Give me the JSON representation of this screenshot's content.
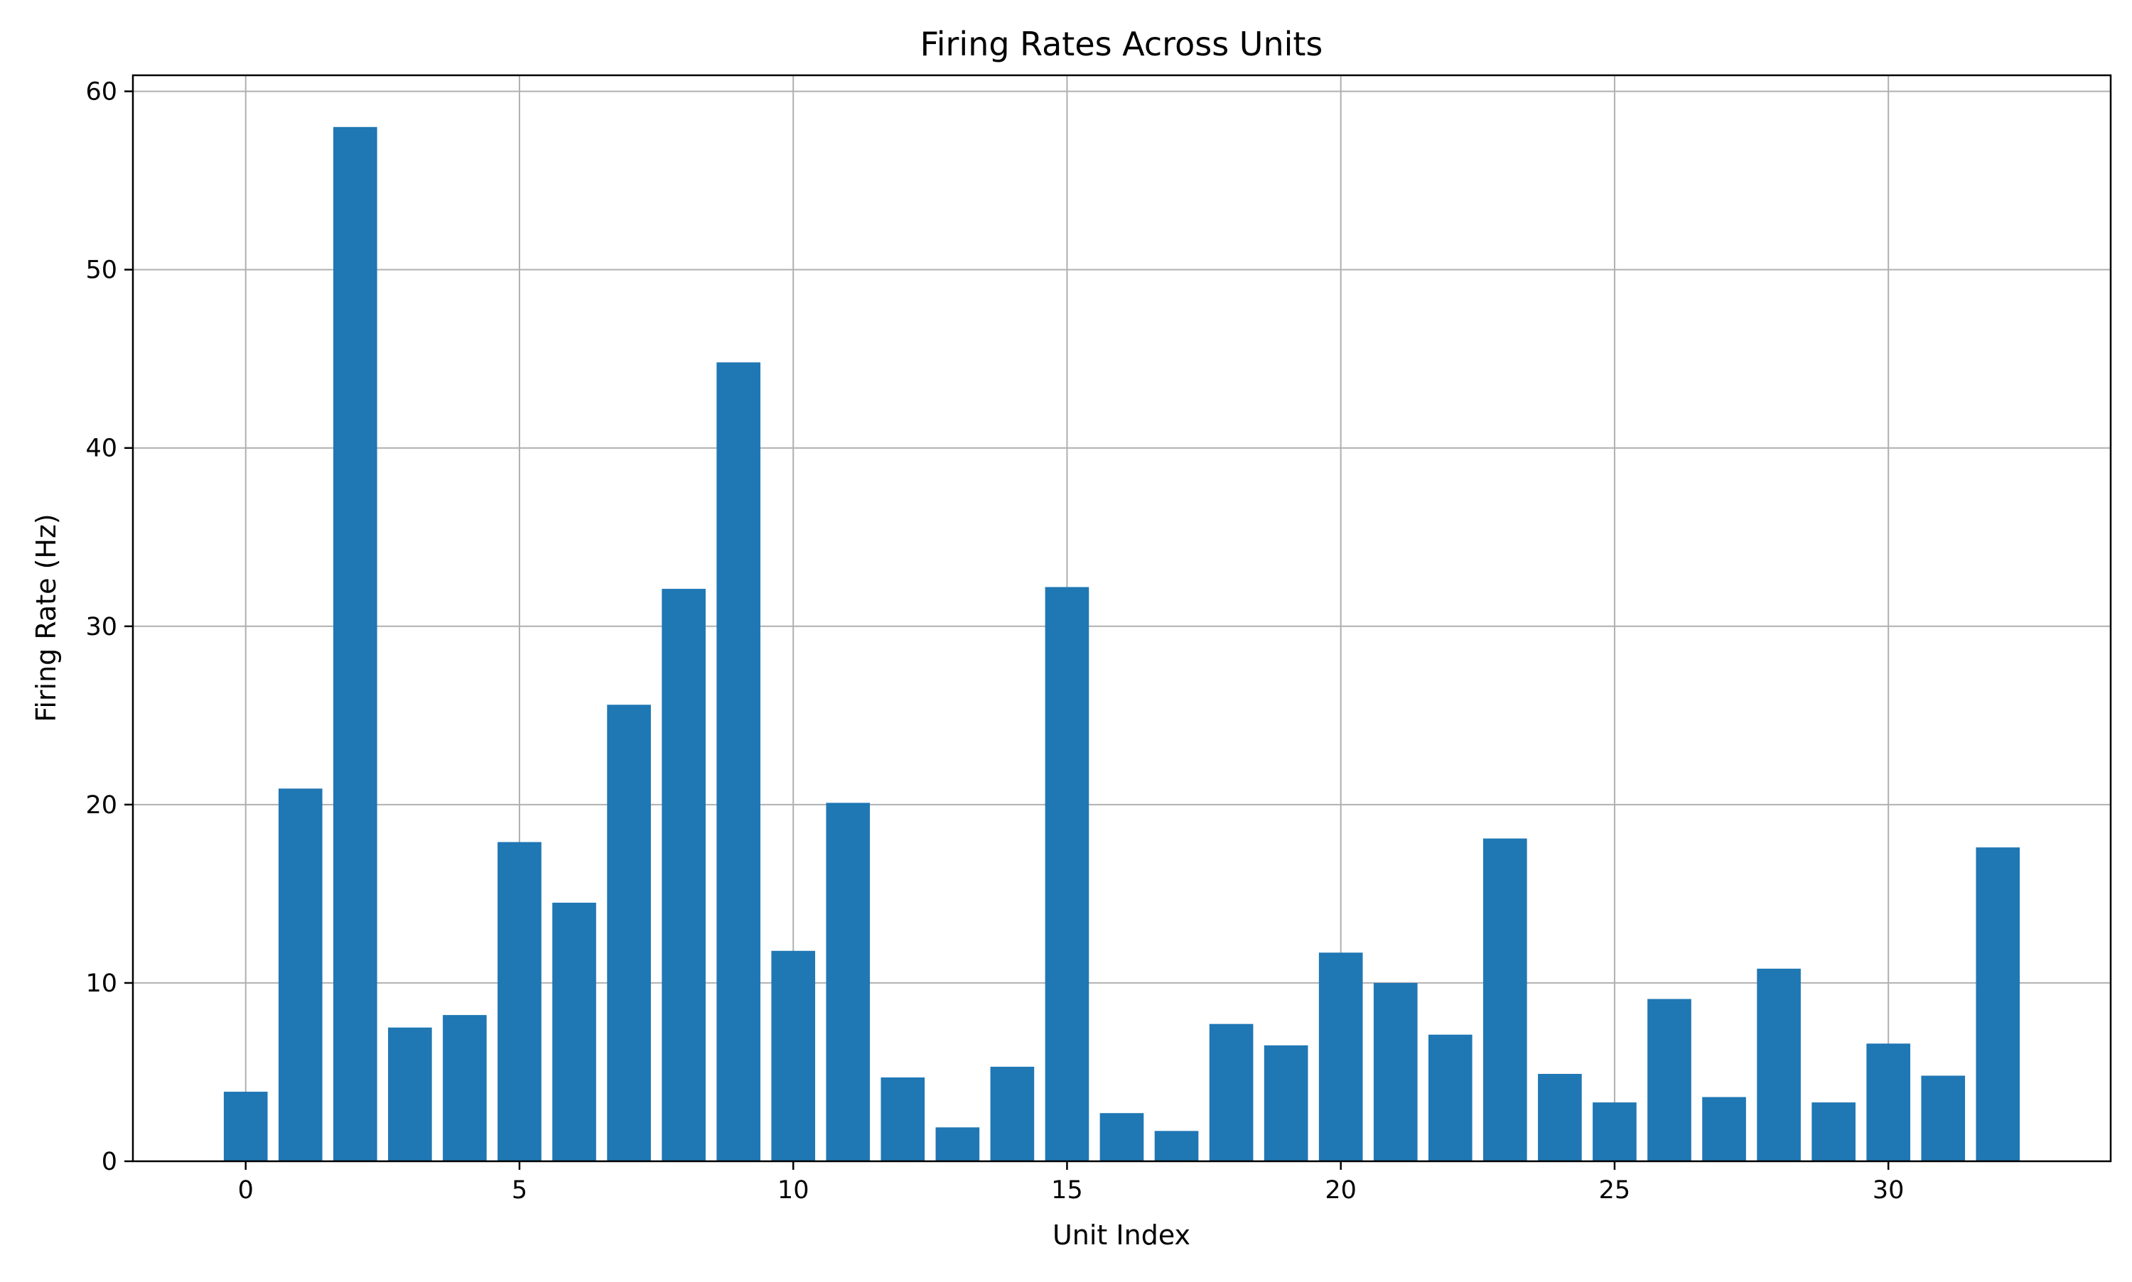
{
  "chart_data": {
    "type": "bar",
    "title": "Firing Rates Across Units",
    "xlabel": "Unit Index",
    "ylabel": "Firing Rate (Hz)",
    "x": [
      0,
      1,
      2,
      3,
      4,
      5,
      6,
      7,
      8,
      9,
      10,
      11,
      12,
      13,
      14,
      15,
      16,
      17,
      18,
      19,
      20,
      21,
      22,
      23,
      24,
      25,
      26,
      27,
      28,
      29,
      30,
      31,
      32
    ],
    "values": [
      3.9,
      20.9,
      58.0,
      7.5,
      8.2,
      17.9,
      14.5,
      25.6,
      32.1,
      44.8,
      11.8,
      20.1,
      4.7,
      1.9,
      5.3,
      32.2,
      2.7,
      1.7,
      7.7,
      6.5,
      11.7,
      10.0,
      7.1,
      18.1,
      4.9,
      3.3,
      9.1,
      3.6,
      10.8,
      3.3,
      6.6,
      4.8,
      17.6
    ],
    "xlim": [
      -2.06,
      34.06
    ],
    "ylim": [
      0,
      60.9
    ],
    "xticks": [
      0,
      5,
      10,
      15,
      20,
      25,
      30
    ],
    "yticks": [
      0,
      10,
      20,
      30,
      40,
      50,
      60
    ],
    "bar_width_units": 0.8,
    "grid": true,
    "bar_color": "#1f77b4",
    "grid_color": "#b0b0b0"
  }
}
